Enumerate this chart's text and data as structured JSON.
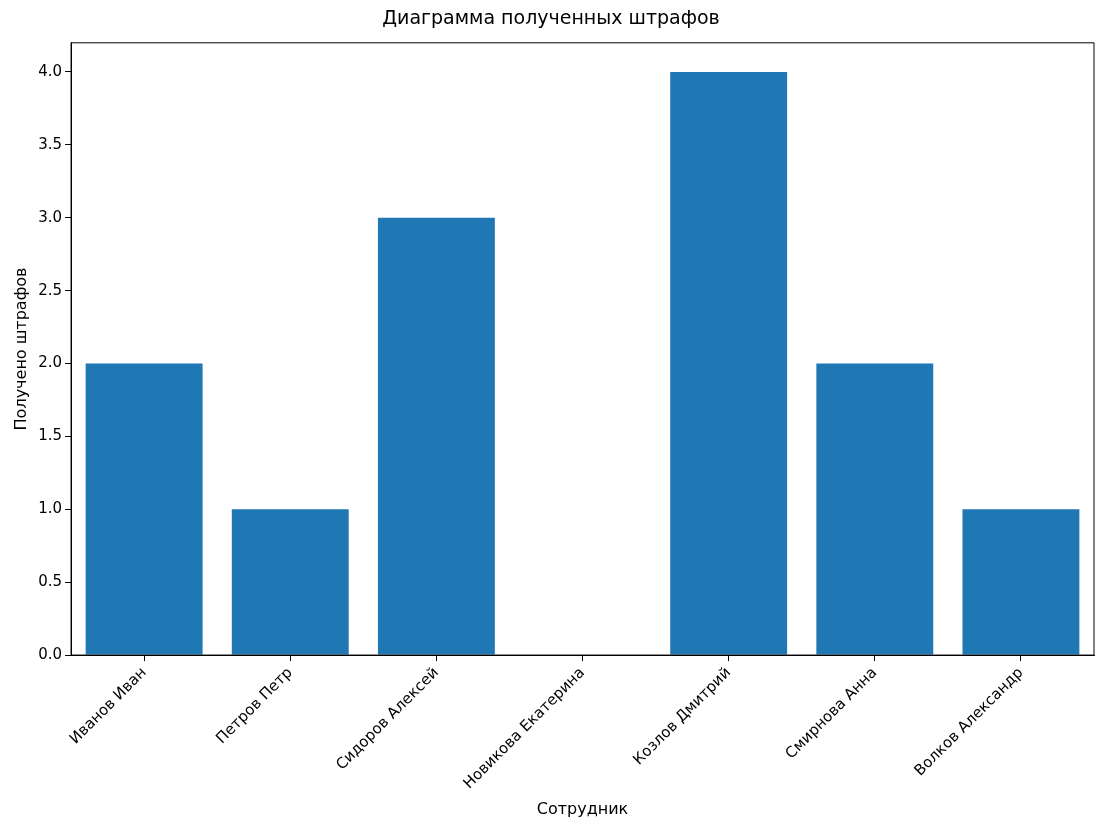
{
  "chart_data": {
    "type": "bar",
    "title": "Диаграмма полученных штрафов",
    "xlabel": "Сотрудник",
    "ylabel": "Получено штрафов",
    "categories": [
      "Иванов Иван",
      "Петров Петр",
      "Сидоров Алексей",
      "Новикова Екатерина",
      "Козлов Дмитрий",
      "Смирнова Анна",
      "Волков Александр"
    ],
    "values": [
      2,
      1,
      3,
      0,
      4,
      2,
      1
    ],
    "color": "#1f77b4",
    "ylim": [
      0,
      4.2
    ],
    "yticks": [
      {
        "value": 0,
        "label": "0.0"
      },
      {
        "value": 0.5,
        "label": "0.5"
      },
      {
        "value": 1,
        "label": "1.0"
      },
      {
        "value": 1.5,
        "label": "1.5"
      },
      {
        "value": 2,
        "label": "2.0"
      },
      {
        "value": 2.5,
        "label": "2.5"
      },
      {
        "value": 3,
        "label": "3.0"
      },
      {
        "value": 3.5,
        "label": "3.5"
      },
      {
        "value": 4,
        "label": "4.0"
      }
    ],
    "grid": false,
    "legend": false
  }
}
